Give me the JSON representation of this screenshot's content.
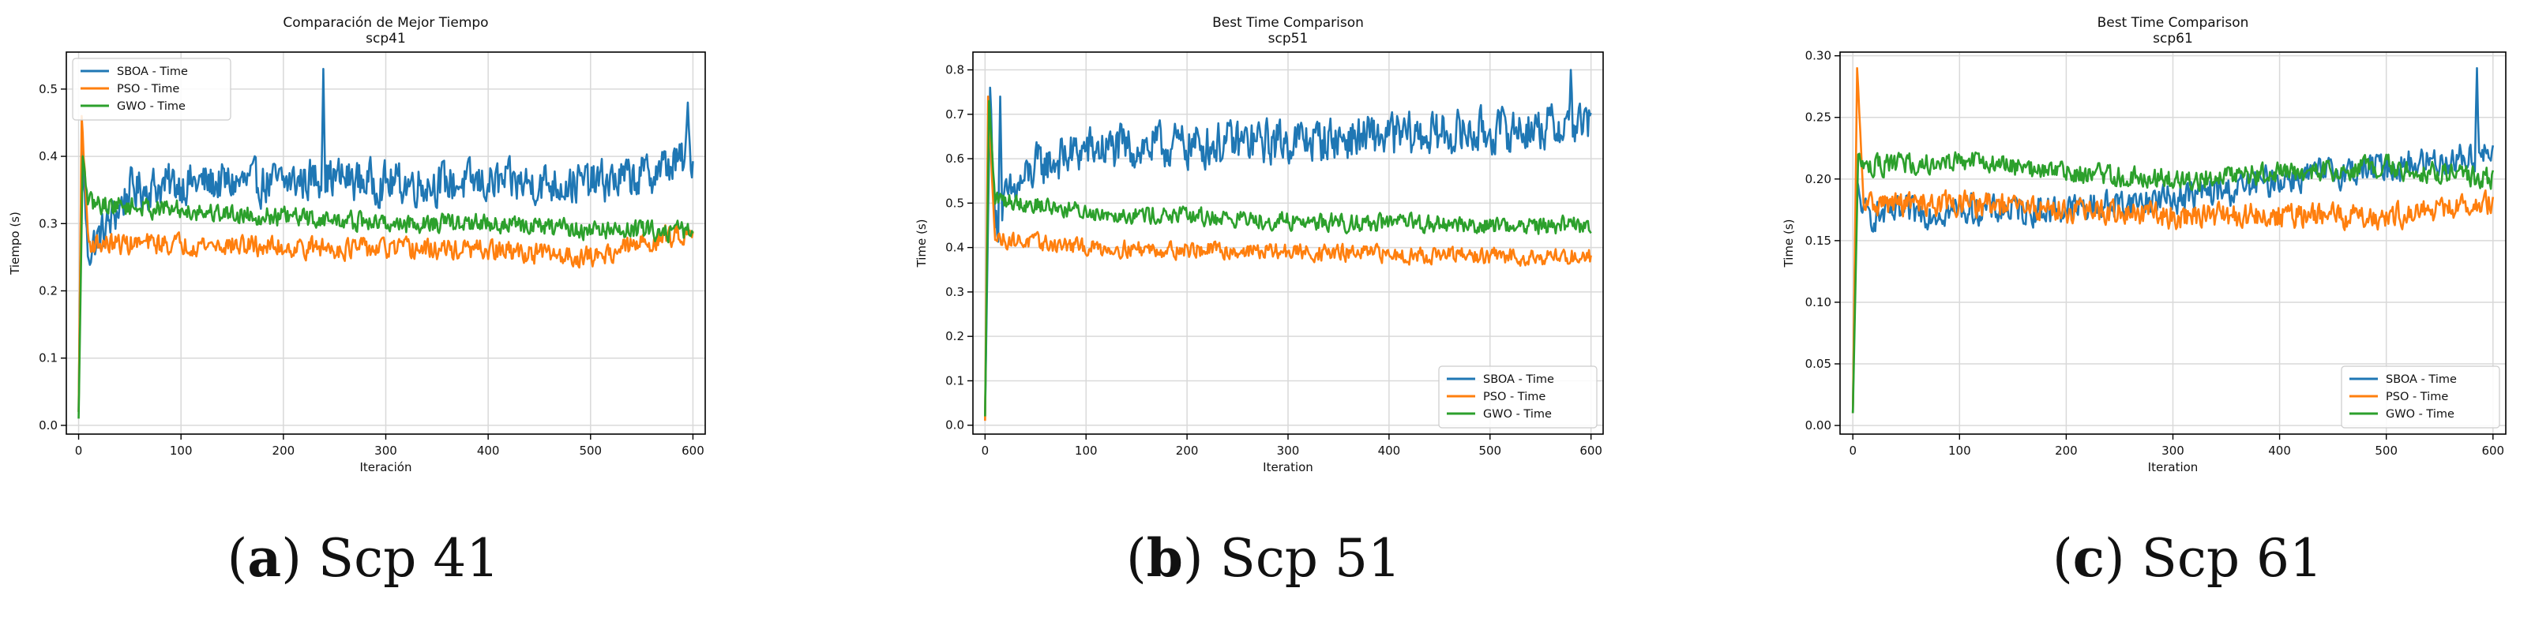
{
  "colors": {
    "sboa": "#1f77b4",
    "pso": "#ff7f0e",
    "gwo": "#2ca02c",
    "grid": "#d9d9d9",
    "axis": "#000000"
  },
  "captions": [
    {
      "letter": "a",
      "text": "Scp 41"
    },
    {
      "letter": "b",
      "text": "Scp 51"
    },
    {
      "letter": "c",
      "text": "Scp 61"
    }
  ],
  "chart_data": [
    {
      "type": "line",
      "title": "Comparación de Mejor Tiempo",
      "subtitle": "scp41",
      "xlabel": "Iteración",
      "ylabel": "Tiempo (s)",
      "xlim": [
        -12,
        612
      ],
      "ylim": [
        -0.013,
        0.555
      ],
      "xticks": [
        0,
        100,
        200,
        300,
        400,
        500,
        600
      ],
      "yticks": [
        0.0,
        0.1,
        0.2,
        0.3,
        0.4,
        0.5
      ],
      "ytick_labels": [
        "0.0",
        "0.1",
        "0.2",
        "0.3",
        "0.4",
        "0.5"
      ],
      "grid": true,
      "legend": "top-left",
      "series": [
        {
          "name": "SBOA - Time",
          "color": "#1f77b4",
          "start": 0.02,
          "peak": 0.42,
          "peak_x": 3,
          "drop": 0.23,
          "keypoints": [
            [
              10,
              0.26
            ],
            [
              30,
              0.3
            ],
            [
              50,
              0.35
            ],
            [
              100,
              0.36
            ],
            [
              200,
              0.36
            ],
            [
              240,
              0.37
            ],
            [
              300,
              0.36
            ],
            [
              400,
              0.36
            ],
            [
              500,
              0.36
            ],
            [
              550,
              0.37
            ],
            [
              600,
              0.4
            ]
          ],
          "noise": 0.028,
          "spikes": [
            [
              239,
              0.53
            ],
            [
              595,
              0.48
            ]
          ]
        },
        {
          "name": "PSO - Time",
          "color": "#ff7f0e",
          "start": 0.02,
          "peak": 0.46,
          "peak_x": 3,
          "drop": 0.26,
          "keypoints": [
            [
              10,
              0.27
            ],
            [
              100,
              0.27
            ],
            [
              200,
              0.265
            ],
            [
              300,
              0.262
            ],
            [
              400,
              0.26
            ],
            [
              500,
              0.25
            ],
            [
              550,
              0.27
            ],
            [
              600,
              0.29
            ]
          ],
          "noise": 0.014,
          "spikes": []
        },
        {
          "name": "GWO - Time",
          "color": "#2ca02c",
          "start": 0.01,
          "peak": 0.4,
          "peak_x": 4,
          "drop": 0.32,
          "keypoints": [
            [
              10,
              0.33
            ],
            [
              100,
              0.32
            ],
            [
              200,
              0.31
            ],
            [
              300,
              0.3
            ],
            [
              400,
              0.3
            ],
            [
              500,
              0.29
            ],
            [
              600,
              0.29
            ]
          ],
          "noise": 0.013,
          "spikes": []
        }
      ]
    },
    {
      "type": "line",
      "title": "Best Time Comparison",
      "subtitle": "scp51",
      "xlabel": "Iteration",
      "ylabel": "Time (s)",
      "xlim": [
        -12,
        612
      ],
      "ylim": [
        -0.02,
        0.84
      ],
      "xticks": [
        0,
        100,
        200,
        300,
        400,
        500,
        600
      ],
      "yticks": [
        0.0,
        0.1,
        0.2,
        0.3,
        0.4,
        0.5,
        0.6,
        0.7,
        0.8
      ],
      "ytick_labels": [
        "0.0",
        "0.1",
        "0.2",
        "0.3",
        "0.4",
        "0.5",
        "0.6",
        "0.7",
        "0.8"
      ],
      "grid": true,
      "legend": "bottom-right",
      "series": [
        {
          "name": "SBOA - Time",
          "color": "#1f77b4",
          "start": 0.02,
          "peak": 0.76,
          "peak_x": 5,
          "drop": 0.45,
          "keypoints": [
            [
              10,
              0.45
            ],
            [
              20,
              0.5
            ],
            [
              50,
              0.58
            ],
            [
              100,
              0.62
            ],
            [
              200,
              0.63
            ],
            [
              300,
              0.64
            ],
            [
              400,
              0.65
            ],
            [
              500,
              0.66
            ],
            [
              600,
              0.68
            ]
          ],
          "noise": 0.045,
          "spikes": [
            [
              15,
              0.74
            ],
            [
              580,
              0.8
            ]
          ]
        },
        {
          "name": "PSO - Time",
          "color": "#ff7f0e",
          "start": 0.01,
          "peak": 0.74,
          "peak_x": 3,
          "drop": 0.42,
          "keypoints": [
            [
              10,
              0.42
            ],
            [
              100,
              0.4
            ],
            [
              200,
              0.395
            ],
            [
              300,
              0.39
            ],
            [
              400,
              0.385
            ],
            [
              500,
              0.38
            ],
            [
              600,
              0.38
            ]
          ],
          "noise": 0.017,
          "spikes": []
        },
        {
          "name": "GWO - Time",
          "color": "#2ca02c",
          "start": 0.02,
          "peak": 0.73,
          "peak_x": 4,
          "drop": 0.5,
          "keypoints": [
            [
              10,
              0.51
            ],
            [
              100,
              0.48
            ],
            [
              200,
              0.47
            ],
            [
              300,
              0.46
            ],
            [
              400,
              0.455
            ],
            [
              500,
              0.45
            ],
            [
              600,
              0.45
            ]
          ],
          "noise": 0.018,
          "spikes": []
        }
      ]
    },
    {
      "type": "line",
      "title": "Best Time Comparison",
      "subtitle": "scp61",
      "xlabel": "Iteration",
      "ylabel": "Time (s)",
      "xlim": [
        -12,
        612
      ],
      "ylim": [
        -0.007,
        0.303
      ],
      "xticks": [
        0,
        100,
        200,
        300,
        400,
        500,
        600
      ],
      "yticks": [
        0.0,
        0.05,
        0.1,
        0.15,
        0.2,
        0.25,
        0.3
      ],
      "ytick_labels": [
        "0.00",
        "0.05",
        "0.10",
        "0.15",
        "0.20",
        "0.25",
        "0.30"
      ],
      "grid": true,
      "legend": "bottom-right",
      "series": [
        {
          "name": "SBOA - Time",
          "color": "#1f77b4",
          "start": 0.01,
          "peak": 0.2,
          "peak_x": 3,
          "drop": 0.17,
          "keypoints": [
            [
              10,
              0.17
            ],
            [
              100,
              0.175
            ],
            [
              200,
              0.175
            ],
            [
              300,
              0.185
            ],
            [
              350,
              0.19
            ],
            [
              400,
              0.2
            ],
            [
              500,
              0.21
            ],
            [
              600,
              0.22
            ]
          ],
          "noise": 0.011,
          "spikes": [
            [
              585,
              0.29
            ]
          ]
        },
        {
          "name": "PSO - Time",
          "color": "#ff7f0e",
          "start": 0.01,
          "peak": 0.29,
          "peak_x": 4,
          "drop": 0.18,
          "keypoints": [
            [
              10,
              0.18
            ],
            [
              100,
              0.18
            ],
            [
              200,
              0.175
            ],
            [
              300,
              0.17
            ],
            [
              400,
              0.17
            ],
            [
              500,
              0.17
            ],
            [
              600,
              0.18
            ]
          ],
          "noise": 0.009,
          "spikes": []
        },
        {
          "name": "GWO - Time",
          "color": "#2ca02c",
          "start": 0.01,
          "peak": 0.22,
          "peak_x": 5,
          "drop": 0.21,
          "keypoints": [
            [
              10,
              0.21
            ],
            [
              100,
              0.215
            ],
            [
              200,
              0.205
            ],
            [
              300,
              0.2
            ],
            [
              400,
              0.205
            ],
            [
              500,
              0.21
            ],
            [
              600,
              0.2
            ]
          ],
          "noise": 0.008,
          "spikes": []
        }
      ]
    }
  ]
}
